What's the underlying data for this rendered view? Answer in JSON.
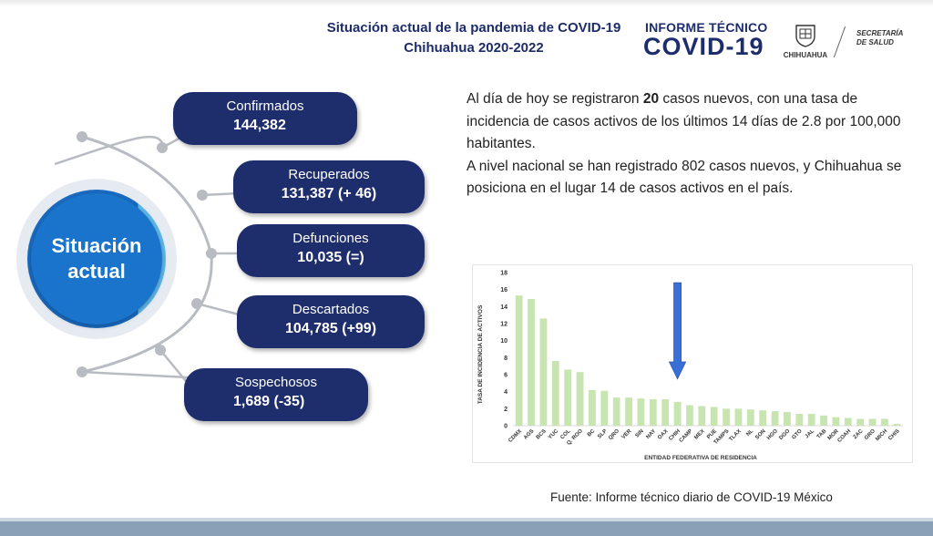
{
  "header": {
    "title_line1": "Situación actual de la pandemia de COVID-19",
    "title_line2": "Chihuahua 2020-2022",
    "informe_top": "INFORME TÉCNICO",
    "informe_bottom": "COVID-19",
    "seal_label": "CHIHUAHUA",
    "secretaria_line1": "SECRETARÍA",
    "secretaria_line2": "DE SALUD"
  },
  "center_circle": {
    "line1": "Situación",
    "line2": "actual"
  },
  "stats": [
    {
      "label": "Confirmados",
      "value": "144,382"
    },
    {
      "label": "Recuperados",
      "value": "131,387 (+ 46)"
    },
    {
      "label": "Defunciones",
      "value": "10,035 (=)"
    },
    {
      "label": "Descartados",
      "value": "104,785 (+99)"
    },
    {
      "label": "Sospechosos",
      "value": "1,689 (-35)"
    }
  ],
  "summary": {
    "p1_before": "Al día de hoy se registraron ",
    "p1_bold": "20",
    "p1_after": " casos nuevos, con una tasa de incidencia de casos activos de los últimos 14 días de 2.8 por 100,000 habitantes.",
    "p2": "A nivel nacional se han registrado 802 casos nuevos, y Chihuahua se posiciona en el lugar 14 de casos activos en el país."
  },
  "source": "Fuente: Informe técnico diario de COVID-19 México",
  "colors": {
    "navy": "#1e2d6b",
    "circle_blue": "#1a74cc",
    "bar_green": "#c7e4b1",
    "arrow_blue": "#3a6fd8"
  },
  "chart_data": {
    "type": "bar",
    "xlabel": "ENTIDAD FEDERATIVA DE RESIDENCIA",
    "ylabel": "TASA DE INCIDENCIA DE ACTIVOS",
    "ylim": [
      0,
      18
    ],
    "yticks": [
      0,
      2,
      4,
      6,
      8,
      10,
      12,
      14,
      16,
      18
    ],
    "grid": false,
    "highlight_category": "CHIH",
    "highlight_marker": "arrow-down",
    "categories": [
      "CDMX",
      "AGS",
      "BCS",
      "YUC",
      "COL",
      "Q. ROO",
      "BC",
      "SLP",
      "QRO",
      "VER",
      "SIN",
      "NAY",
      "OAX",
      "CHIH",
      "CAMP",
      "MEX",
      "PUE",
      "TAMPS",
      "TLAX",
      "NL",
      "SON",
      "HGO",
      "DGO",
      "GTO",
      "JAL",
      "TAB",
      "MOR",
      "COAH",
      "ZAC",
      "GRO",
      "MICH",
      "CHIS"
    ],
    "values": [
      15.3,
      14.9,
      12.6,
      7.6,
      6.6,
      6.3,
      4.2,
      4.1,
      3.3,
      3.3,
      3.2,
      3.1,
      3.1,
      2.8,
      2.4,
      2.3,
      2.2,
      2.0,
      2.0,
      1.9,
      1.8,
      1.7,
      1.6,
      1.4,
      1.4,
      1.2,
      1.0,
      0.9,
      0.8,
      0.8,
      0.8,
      0.2
    ]
  }
}
